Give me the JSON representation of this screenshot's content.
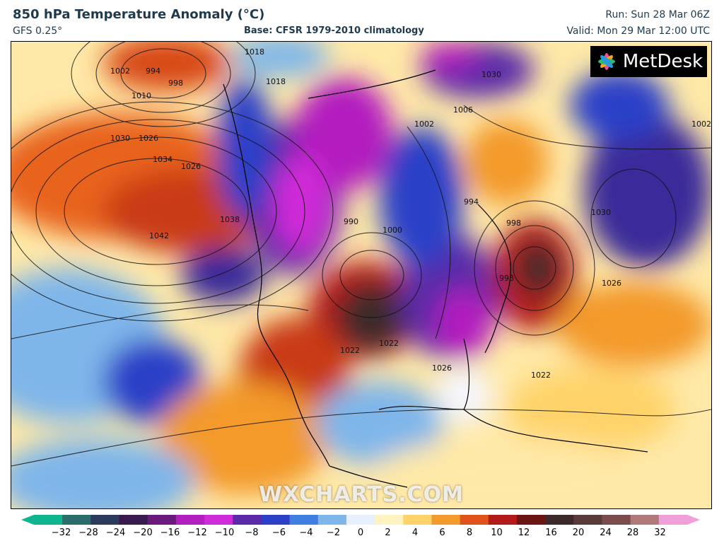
{
  "header": {
    "title": "850 hPa Temperature Anomaly (°C)",
    "model": "GFS 0.25°",
    "base": "Base: CFSR 1979-2010 climatology",
    "run": "Run: Sun 28 Mar 06Z",
    "valid": "Valid: Mon 29 Mar 12:00 UTC"
  },
  "logo": {
    "text": "MetDesk",
    "icon": "metdesk-flower-icon"
  },
  "watermark": "WXCHARTS.COM",
  "isobar_labels": [
    "1002",
    "994",
    "998",
    "1010",
    "1018",
    "1018",
    "1026",
    "1030",
    "1034",
    "1038",
    "1042",
    "1030",
    "1026",
    "1022",
    "1022",
    "1026",
    "990",
    "1000",
    "994",
    "998",
    "998",
    "1006",
    "1002",
    "1030",
    "1026",
    "1002",
    "1022"
  ],
  "colorbar": {
    "ticks": [
      "−32",
      "−28",
      "−24",
      "−20",
      "−16",
      "−12",
      "−10",
      "−8",
      "−6",
      "−4",
      "−2",
      "0",
      "2",
      "4",
      "6",
      "8",
      "10",
      "12",
      "16",
      "20",
      "24",
      "28",
      "32"
    ],
    "colors": [
      "#0fb58f",
      "#2b6d6b",
      "#2c3a5b",
      "#3a1b4f",
      "#6a1a7a",
      "#b31fbf",
      "#d02bd8",
      "#5a2aa8",
      "#2b3fc7",
      "#3f7fe0",
      "#7fb6ea",
      "#e8efff",
      "#fff3c2",
      "#ffd36a",
      "#f39a2c",
      "#e0541c",
      "#b31b1b",
      "#6b1414",
      "#3c2a2a",
      "#5a3b3b",
      "#7a4c4c",
      "#b07a7a",
      "#f0a0d8"
    ]
  }
}
